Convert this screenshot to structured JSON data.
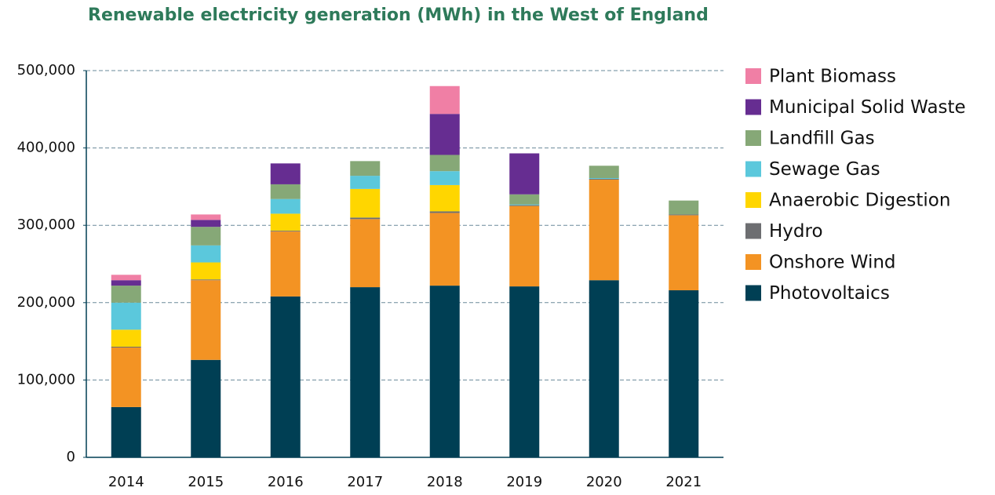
{
  "chart_data": {
    "type": "stacked-bar",
    "title": "Renewable electricity generation (MWh) in the West of England",
    "categories": [
      "2014",
      "2015",
      "2016",
      "2017",
      "2018",
      "2019",
      "2020",
      "2021"
    ],
    "series": [
      {
        "name": "Photovoltaics",
        "color": "#003f54",
        "values": [
          65000,
          126000,
          208000,
          220000,
          222000,
          221000,
          229000,
          216000
        ]
      },
      {
        "name": "Onshore Wind",
        "color": "#f39323",
        "values": [
          77000,
          103000,
          84000,
          88000,
          94000,
          104000,
          130000,
          97000
        ]
      },
      {
        "name": "Hydro",
        "color": "#6d6e71",
        "values": [
          1000,
          1000,
          1000,
          2000,
          2000,
          1000,
          1000,
          1000
        ]
      },
      {
        "name": "Anaerobic Digestion",
        "color": "#ffd600",
        "values": [
          22000,
          22000,
          22000,
          37000,
          34000,
          0,
          0,
          0
        ]
      },
      {
        "name": "Sewage Gas",
        "color": "#5bc8dc",
        "values": [
          35000,
          22000,
          19000,
          17000,
          18000,
          1000,
          1000,
          0
        ]
      },
      {
        "name": "Landfill Gas",
        "color": "#86a877",
        "values": [
          22000,
          24000,
          19000,
          19000,
          21000,
          13000,
          16000,
          18000
        ]
      },
      {
        "name": "Municipal Solid Waste",
        "color": "#662d91",
        "values": [
          7000,
          9000,
          27000,
          0,
          53000,
          53000,
          0,
          0
        ]
      },
      {
        "name": "Plant Biomass",
        "color": "#f07fa5",
        "values": [
          7000,
          7000,
          0,
          0,
          36000,
          0,
          0,
          0
        ]
      }
    ],
    "ylim": [
      0,
      500000
    ],
    "yticks": [
      0,
      {
        "value": 100000,
        "label": "100,000"
      },
      {
        "value": 200000,
        "label": "200,000"
      },
      {
        "value": 300000,
        "label": "300,000"
      },
      {
        "value": 400000,
        "label": "400,000"
      },
      {
        "value": 500000,
        "label": "500,000"
      }
    ],
    "grid": true,
    "legend": "right"
  }
}
